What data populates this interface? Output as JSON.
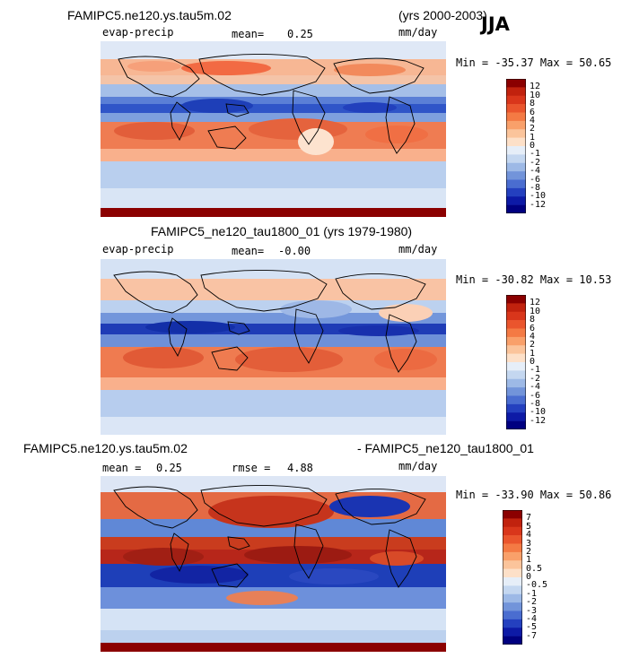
{
  "figure": {
    "season": "JJA",
    "units": "mm/day"
  },
  "panels": [
    {
      "title": "FAMIPC5.ne120.ys.tau5m.02",
      "years": "(yrs 2000-2003)",
      "variable": "evap-precip",
      "mean_label": "mean=",
      "mean_value": "0.25",
      "min_max": "Min = -35.37  Max =  50.65",
      "bottom_band": true
    },
    {
      "title": "FAMIPC5_ne120_tau1800_01 (yrs 1979-1980)",
      "variable": "evap-precip",
      "mean_label": "mean=",
      "mean_value": "-0.00",
      "min_max": "Min = -30.82  Max =  10.53",
      "bottom_band": false
    },
    {
      "title_left": "FAMIPC5.ne120.ys.tau5m.02",
      "title_right": "- FAMIPC5_ne120_tau1800_01",
      "mean_label": "mean =",
      "mean_value": "0.25",
      "rmse_label": "rmse =",
      "rmse_value": "4.88",
      "min_max": "Min = -33.90  Max =  50.86",
      "bottom_band": true
    }
  ],
  "chart_data": [
    {
      "type": "heatmap",
      "title": "FAMIPC5.ne120.ys.tau5m.02 (yrs 2000-2003)",
      "variable": "evap-precip",
      "units": "mm/day",
      "mean": 0.25,
      "min": -35.37,
      "max": 50.65,
      "colorbar_levels": [
        "12",
        "10",
        "8",
        "6",
        "4",
        "2",
        "1",
        "0",
        "-1",
        "-2",
        "-4",
        "-6",
        "-8",
        "-10",
        "-12"
      ],
      "colorbar_colors": [
        "#8b0000",
        "#c1220e",
        "#d9361b",
        "#ea552d",
        "#f47a44",
        "#f9a06a",
        "#fbc49b",
        "#fde0c8",
        "#e6eef8",
        "#c4d7f0",
        "#9db9e6",
        "#7294da",
        "#4a6dd0",
        "#2440bf",
        "#0d1aa6",
        "#000080"
      ]
    },
    {
      "type": "heatmap",
      "title": "FAMIPC5_ne120_tau1800_01 (yrs 1979-1980)",
      "variable": "evap-precip",
      "units": "mm/day",
      "mean": -0.0,
      "min": -30.82,
      "max": 10.53,
      "colorbar_levels": [
        "12",
        "10",
        "8",
        "6",
        "4",
        "2",
        "1",
        "0",
        "-1",
        "-2",
        "-4",
        "-6",
        "-8",
        "-10",
        "-12"
      ],
      "colorbar_colors": [
        "#8b0000",
        "#c1220e",
        "#d9361b",
        "#ea552d",
        "#f47a44",
        "#f9a06a",
        "#fbc49b",
        "#fde0c8",
        "#e6eef8",
        "#c4d7f0",
        "#9db9e6",
        "#7294da",
        "#4a6dd0",
        "#2440bf",
        "#0d1aa6",
        "#000080"
      ]
    },
    {
      "type": "heatmap",
      "title": "FAMIPC5.ne120.ys.tau5m.02 - FAMIPC5_ne120_tau1800_01",
      "units": "mm/day",
      "mean": 0.25,
      "rmse": 4.88,
      "min": -33.9,
      "max": 50.86,
      "colorbar_levels": [
        "7",
        "5",
        "4",
        "3",
        "2",
        "1",
        "0.5",
        "0",
        "-0.5",
        "-1",
        "-2",
        "-3",
        "-4",
        "-5",
        "-7"
      ],
      "colorbar_colors": [
        "#8b0000",
        "#c1220e",
        "#d9361b",
        "#ea552d",
        "#f47a44",
        "#f9a06a",
        "#fbc49b",
        "#fde0c8",
        "#e6eef8",
        "#c4d7f0",
        "#9db9e6",
        "#7294da",
        "#4a6dd0",
        "#2440bf",
        "#0d1aa6",
        "#000080"
      ]
    }
  ]
}
